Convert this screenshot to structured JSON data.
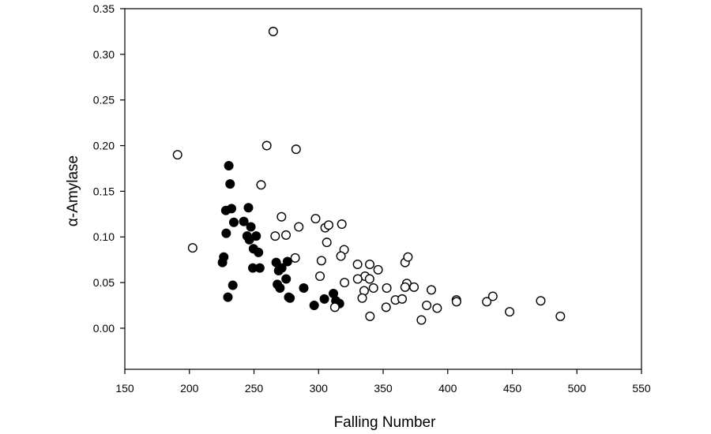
{
  "chart_data": {
    "type": "scatter",
    "title": "",
    "xlabel": "Falling Number",
    "ylabel": "α-Amylase",
    "xlim": [
      150,
      550
    ],
    "ylim": [
      -0.045,
      0.35
    ],
    "x_ticks": [
      150,
      200,
      250,
      300,
      350,
      400,
      450,
      500,
      550
    ],
    "y_ticks": [
      0.0,
      0.05,
      0.1,
      0.15,
      0.2,
      0.25,
      0.3,
      0.35
    ],
    "x_tick_labels": [
      "150",
      "200",
      "250",
      "300",
      "350",
      "400",
      "450",
      "500",
      "550"
    ],
    "y_tick_labels": [
      "0.00",
      "0.05",
      "0.10",
      "0.15",
      "0.20",
      "0.25",
      "0.30",
      "0.35"
    ],
    "grid": false,
    "legend": "none",
    "colors": {
      "axis": "#000000",
      "filled_marker": "#000000",
      "open_marker_stroke": "#000000",
      "open_marker_fill": "#ffffff"
    },
    "series": [
      {
        "marker": "filled-circle",
        "points": [
          [
            230.5,
            0.178
          ],
          [
            231.5,
            0.158
          ],
          [
            228.2,
            0.129
          ],
          [
            232.6,
            0.131
          ],
          [
            245.7,
            0.132
          ],
          [
            234.4,
            0.116
          ],
          [
            242.1,
            0.117
          ],
          [
            247.6,
            0.111
          ],
          [
            228.5,
            0.104
          ],
          [
            244.7,
            0.101
          ],
          [
            246.4,
            0.097
          ],
          [
            251.7,
            0.101
          ],
          [
            249.6,
            0.087
          ],
          [
            253.5,
            0.083
          ],
          [
            226.6,
            0.078
          ],
          [
            225.6,
            0.072
          ],
          [
            249.1,
            0.066
          ],
          [
            254.5,
            0.066
          ],
          [
            233.6,
            0.047
          ],
          [
            229.8,
            0.034
          ],
          [
            267.2,
            0.072
          ],
          [
            269.1,
            0.063
          ],
          [
            271.5,
            0.066
          ],
          [
            275.9,
            0.073
          ],
          [
            274.9,
            0.054
          ],
          [
            268.1,
            0.048
          ],
          [
            270.1,
            0.044
          ],
          [
            276.9,
            0.034
          ],
          [
            277.9,
            0.033
          ],
          [
            288.5,
            0.044
          ],
          [
            296.6,
            0.025
          ],
          [
            304.5,
            0.032
          ],
          [
            311.5,
            0.038
          ],
          [
            313.4,
            0.03
          ],
          [
            316.2,
            0.027
          ]
        ]
      },
      {
        "marker": "open-circle",
        "points": [
          [
            264.9,
            0.325
          ],
          [
            190.8,
            0.19
          ],
          [
            259.9,
            0.2
          ],
          [
            282.6,
            0.196
          ],
          [
            255.5,
            0.157
          ],
          [
            202.5,
            0.088
          ],
          [
            271.3,
            0.122
          ],
          [
            274.8,
            0.102
          ],
          [
            266.4,
            0.101
          ],
          [
            284.7,
            0.111
          ],
          [
            297.7,
            0.12
          ],
          [
            305.1,
            0.11
          ],
          [
            307.8,
            0.113
          ],
          [
            318.0,
            0.114
          ],
          [
            306.4,
            0.094
          ],
          [
            319.8,
            0.086
          ],
          [
            317.3,
            0.079
          ],
          [
            281.9,
            0.077
          ],
          [
            302.2,
            0.074
          ],
          [
            330.2,
            0.07
          ],
          [
            339.6,
            0.07
          ],
          [
            346.1,
            0.064
          ],
          [
            336.0,
            0.057
          ],
          [
            330.3,
            0.054
          ],
          [
            339.5,
            0.054
          ],
          [
            320.1,
            0.05
          ],
          [
            301.1,
            0.057
          ],
          [
            342.5,
            0.044
          ],
          [
            335.3,
            0.041
          ],
          [
            333.8,
            0.033
          ],
          [
            339.8,
            0.013
          ],
          [
            312.6,
            0.023
          ],
          [
            352.8,
            0.044
          ],
          [
            352.3,
            0.023
          ],
          [
            359.5,
            0.031
          ],
          [
            364.7,
            0.032
          ],
          [
            367.0,
            0.072
          ],
          [
            369.2,
            0.078
          ],
          [
            368.3,
            0.049
          ],
          [
            367.0,
            0.045
          ],
          [
            373.9,
            0.045
          ],
          [
            379.6,
            0.009
          ],
          [
            383.7,
            0.025
          ],
          [
            387.3,
            0.042
          ],
          [
            391.8,
            0.022
          ],
          [
            406.7,
            0.031
          ],
          [
            406.8,
            0.029
          ],
          [
            430.2,
            0.029
          ],
          [
            434.9,
            0.035
          ],
          [
            447.9,
            0.018
          ],
          [
            472.0,
            0.03
          ],
          [
            487.2,
            0.013
          ]
        ]
      }
    ]
  }
}
